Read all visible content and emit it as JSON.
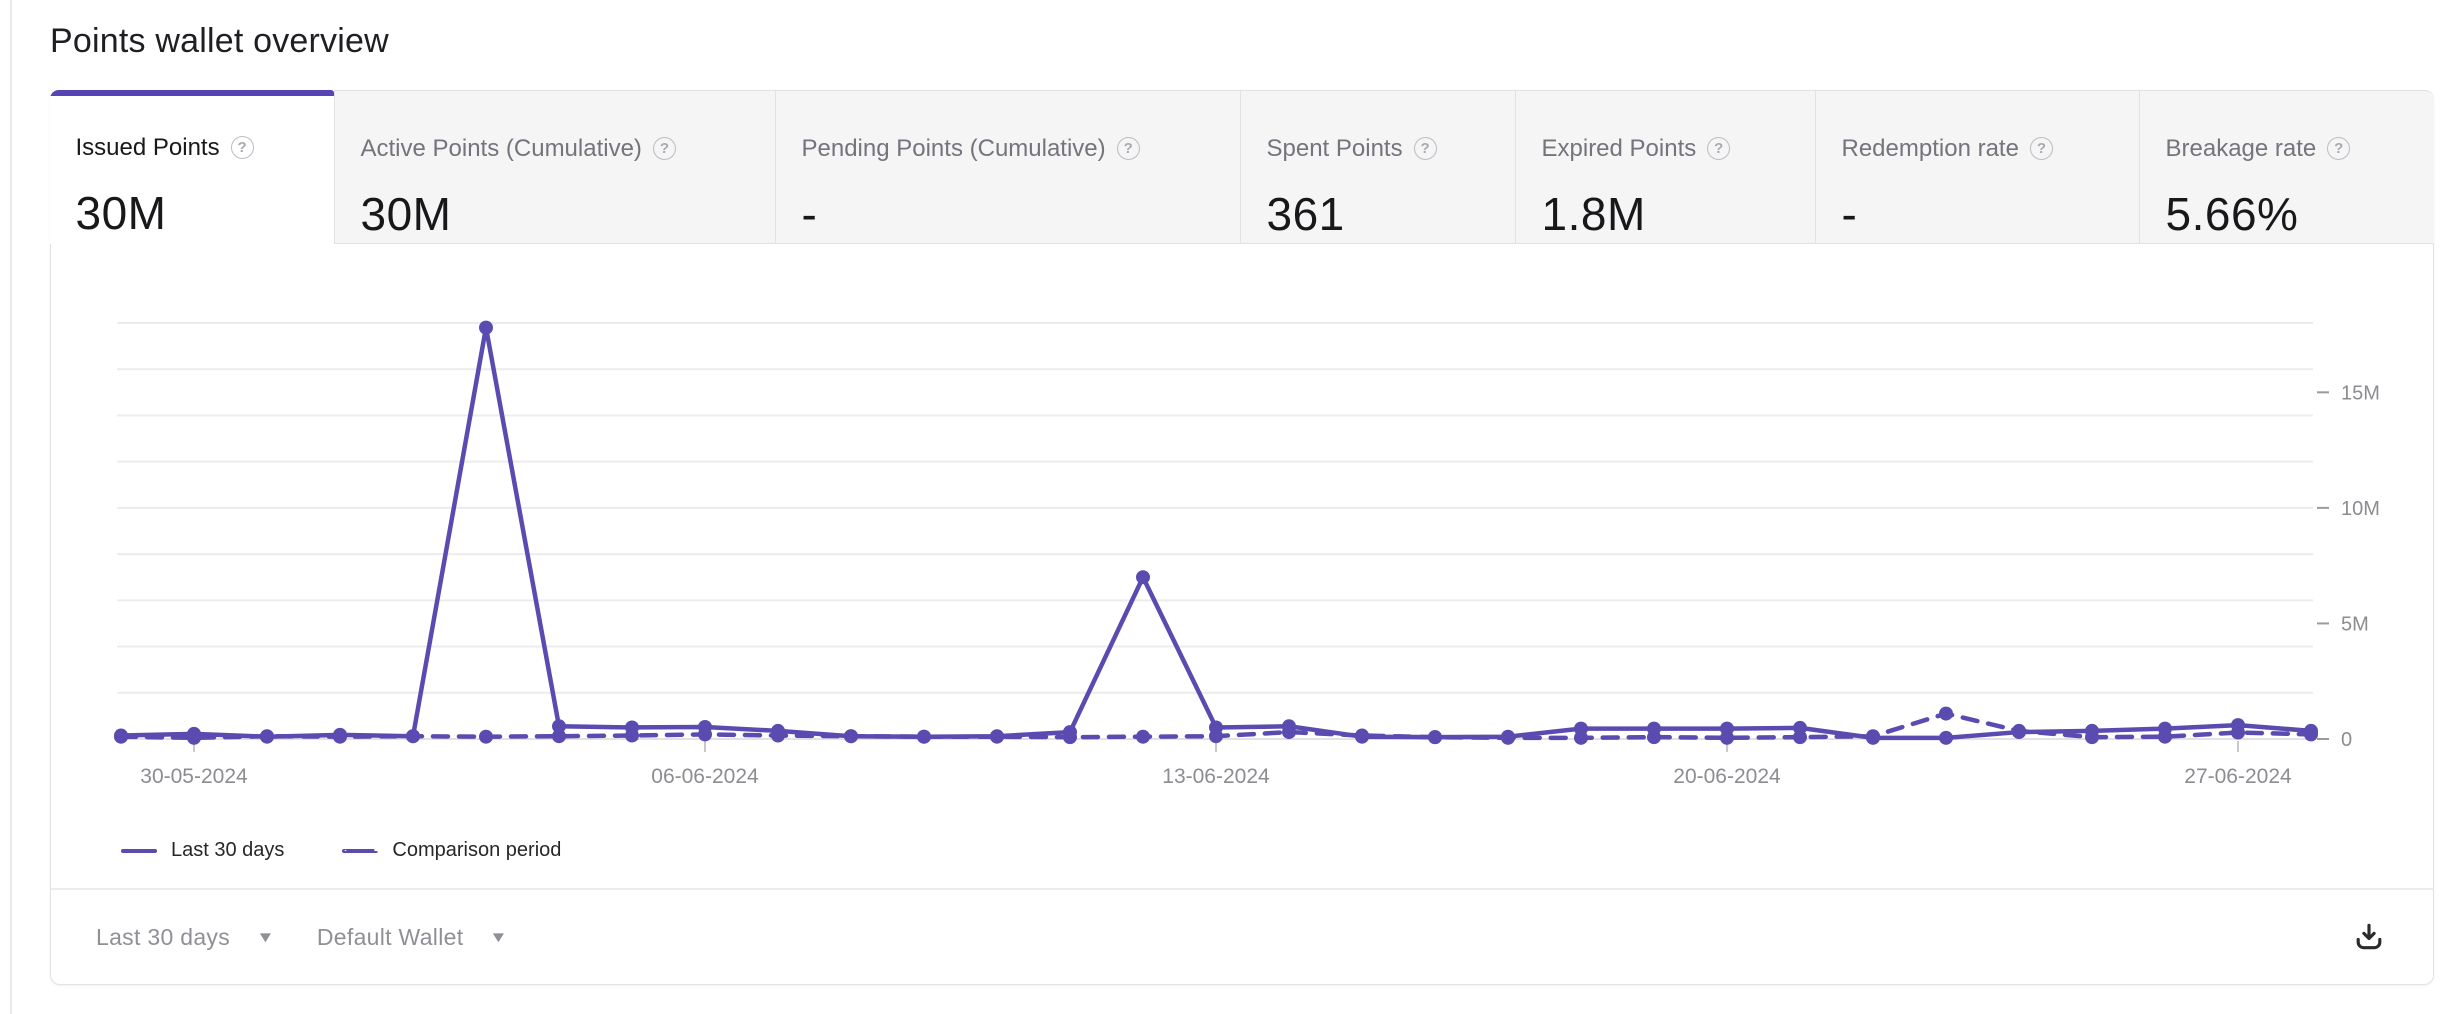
{
  "page": {
    "title": "Points wallet overview"
  },
  "metrics": [
    {
      "label": "Issued Points",
      "value": "30M",
      "active": true
    },
    {
      "label": "Active Points (Cumulative)",
      "value": "30M",
      "active": false
    },
    {
      "label": "Pending Points (Cumulative)",
      "value": "-",
      "active": false
    },
    {
      "label": "Spent Points",
      "value": "361",
      "active": false
    },
    {
      "label": "Expired Points",
      "value": "1.8M",
      "active": false
    },
    {
      "label": "Redemption rate",
      "value": "-",
      "active": false
    },
    {
      "label": "Breakage rate",
      "value": "5.66%",
      "active": false
    }
  ],
  "help_icon_glyph": "?",
  "chart_data": {
    "type": "line",
    "unit": "M points",
    "x_tick_labels": [
      "30-05-2024",
      "06-06-2024",
      "13-06-2024",
      "20-06-2024",
      "27-06-2024"
    ],
    "x_tick_indices": [
      1,
      8,
      15,
      22,
      29
    ],
    "y_tick_labels": [
      "0",
      "5M",
      "10M",
      "15M"
    ],
    "y_tick_values": [
      0,
      5,
      10,
      15
    ],
    "ylim": [
      0,
      18
    ],
    "grid_step": 2,
    "grid": true,
    "legend_position": "bottom-left",
    "series": [
      {
        "name": "Last 30 days",
        "style": "solid",
        "values": [
          0.15,
          0.22,
          0.1,
          0.18,
          0.12,
          17.8,
          0.55,
          0.5,
          0.52,
          0.35,
          0.12,
          0.1,
          0.12,
          0.3,
          7.0,
          0.5,
          0.55,
          0.1,
          0.08,
          0.1,
          0.45,
          0.45,
          0.45,
          0.48,
          0.05,
          0.05,
          0.3,
          0.35,
          0.45,
          0.6,
          0.35
        ]
      },
      {
        "name": "Comparison period",
        "style": "dashed",
        "values": [
          0.1,
          0.05,
          0.12,
          0.1,
          0.12,
          0.1,
          0.12,
          0.15,
          0.2,
          0.15,
          0.12,
          0.1,
          0.1,
          0.08,
          0.1,
          0.12,
          0.3,
          0.15,
          0.08,
          0.05,
          0.05,
          0.08,
          0.05,
          0.08,
          0.12,
          1.1,
          0.35,
          0.08,
          0.1,
          0.28,
          0.2
        ]
      }
    ],
    "colors": {
      "accent": "#5843b6",
      "line": "#5a4bb0",
      "grid": "#ececee",
      "axis": "#e2e2e4",
      "muted_text": "#8c8c91"
    }
  },
  "footer": {
    "range_label": "Last 30 days",
    "wallet_label": "Default Wallet"
  }
}
